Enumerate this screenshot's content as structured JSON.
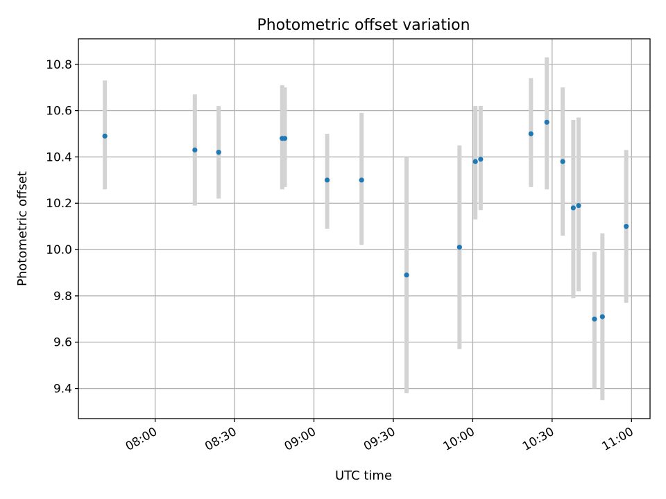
{
  "chart_data": {
    "type": "scatter",
    "title": "Photometric offset variation",
    "xlabel": "UTC time",
    "ylabel": "Photometric offset",
    "x_ticks": [
      "08:00",
      "08:30",
      "09:00",
      "09:30",
      "10:00",
      "10:30",
      "11:00"
    ],
    "y_ticks": [
      "9.4",
      "9.6",
      "9.8",
      "10.0",
      "10.2",
      "10.4",
      "10.6",
      "10.8"
    ],
    "xlim": [
      "07:31",
      "11:07"
    ],
    "ylim": [
      9.27,
      10.91
    ],
    "grid": true,
    "point_color": "#1f77b4",
    "errorbar_color": "#d3d3d3",
    "points": [
      {
        "x": "07:41",
        "y": 10.49,
        "err_low": 10.26,
        "err_high": 10.73
      },
      {
        "x": "08:15",
        "y": 10.43,
        "err_low": 10.19,
        "err_high": 10.67
      },
      {
        "x": "08:24",
        "y": 10.42,
        "err_low": 10.22,
        "err_high": 10.62
      },
      {
        "x": "08:48",
        "y": 10.48,
        "err_low": 10.26,
        "err_high": 10.71
      },
      {
        "x": "08:49",
        "y": 10.48,
        "err_low": 10.27,
        "err_high": 10.7
      },
      {
        "x": "09:05",
        "y": 10.3,
        "err_low": 10.09,
        "err_high": 10.5
      },
      {
        "x": "09:18",
        "y": 10.3,
        "err_low": 10.02,
        "err_high": 10.59
      },
      {
        "x": "09:35",
        "y": 9.89,
        "err_low": 9.38,
        "err_high": 10.4
      },
      {
        "x": "09:55",
        "y": 10.01,
        "err_low": 9.57,
        "err_high": 10.45
      },
      {
        "x": "10:01",
        "y": 10.38,
        "err_low": 10.13,
        "err_high": 10.62
      },
      {
        "x": "10:03",
        "y": 10.39,
        "err_low": 10.17,
        "err_high": 10.62
      },
      {
        "x": "10:22",
        "y": 10.5,
        "err_low": 10.27,
        "err_high": 10.74
      },
      {
        "x": "10:28",
        "y": 10.55,
        "err_low": 10.26,
        "err_high": 10.83
      },
      {
        "x": "10:34",
        "y": 10.38,
        "err_low": 10.06,
        "err_high": 10.7
      },
      {
        "x": "10:38",
        "y": 10.18,
        "err_low": 9.79,
        "err_high": 10.56
      },
      {
        "x": "10:40",
        "y": 10.19,
        "err_low": 9.82,
        "err_high": 10.57
      },
      {
        "x": "10:46",
        "y": 9.7,
        "err_low": 9.4,
        "err_high": 9.99
      },
      {
        "x": "10:49",
        "y": 9.71,
        "err_low": 9.35,
        "err_high": 10.07
      },
      {
        "x": "10:58",
        "y": 10.1,
        "err_low": 9.77,
        "err_high": 10.43
      }
    ]
  }
}
